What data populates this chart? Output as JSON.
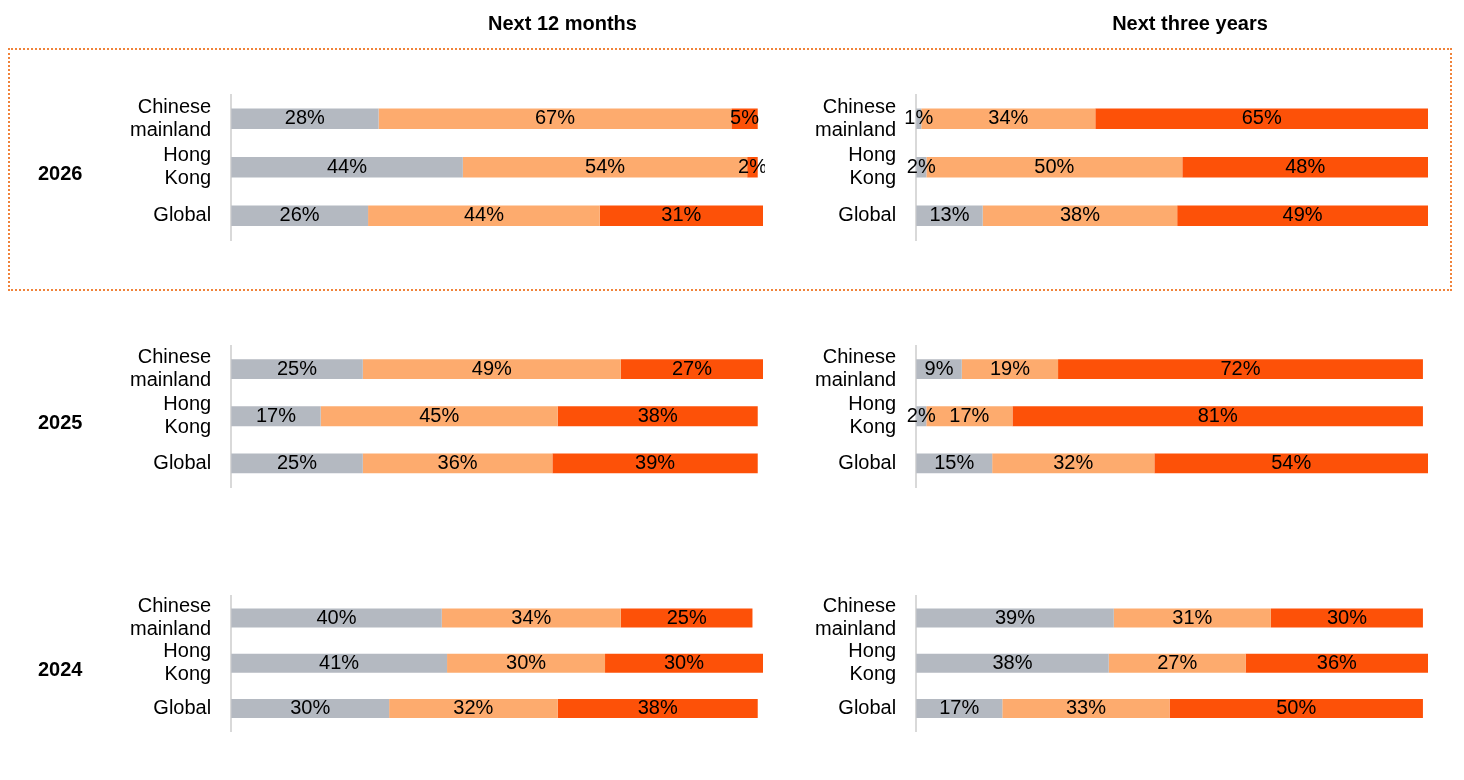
{
  "chart_data": [
    {
      "type": "bar",
      "orientation": "horizontal",
      "stacked": true,
      "title": "Next 12 months",
      "ylabel": "2026",
      "categories": [
        "Chinese mainland",
        "Hong Kong",
        "Global"
      ],
      "series": [
        {
          "color": "#b4b9c1",
          "values": [
            28,
            44,
            26
          ],
          "value_labels": [
            "28%",
            "44%",
            "26%"
          ]
        },
        {
          "color": "#fdab6e",
          "values": [
            67,
            54,
            44
          ],
          "value_labels": [
            "67%",
            "54%",
            "44%"
          ]
        },
        {
          "color": "#fd5108",
          "values": [
            5,
            2,
            31
          ],
          "value_labels": [
            "5%",
            "2%",
            "31%"
          ]
        }
      ],
      "legend": false,
      "grid": false,
      "tick_labels": "y"
    },
    {
      "type": "bar",
      "orientation": "horizontal",
      "stacked": true,
      "title": "Next three years",
      "categories": [
        "Chinese mainland",
        "Hong Kong",
        "Global"
      ],
      "series": [
        {
          "color": "#b4b9c1",
          "values": [
            1,
            2,
            13
          ],
          "value_labels": [
            "1%",
            "2%",
            "13%"
          ]
        },
        {
          "color": "#fdab6e",
          "values": [
            34,
            50,
            38
          ],
          "value_labels": [
            "34%",
            "50%",
            "38%"
          ]
        },
        {
          "color": "#fd5108",
          "values": [
            65,
            48,
            49
          ],
          "value_labels": [
            "65%",
            "48%",
            "49%"
          ]
        }
      ],
      "legend": false,
      "grid": false,
      "tick_labels": "y"
    },
    {
      "type": "bar",
      "orientation": "horizontal",
      "stacked": true,
      "ylabel": "2025",
      "categories": [
        "Chinese mainland",
        "Hong Kong",
        "Global"
      ],
      "series": [
        {
          "color": "#b4b9c1",
          "values": [
            25,
            17,
            25
          ],
          "value_labels": [
            "25%",
            "17%",
            "25%"
          ]
        },
        {
          "color": "#fdab6e",
          "values": [
            49,
            45,
            36
          ],
          "value_labels": [
            "49%",
            "45%",
            "36%"
          ]
        },
        {
          "color": "#fd5108",
          "values": [
            27,
            38,
            39
          ],
          "value_labels": [
            "27%",
            "38%",
            "39%"
          ]
        }
      ],
      "legend": false,
      "grid": false,
      "tick_labels": "y"
    },
    {
      "type": "bar",
      "orientation": "horizontal",
      "stacked": true,
      "categories": [
        "Chinese mainland",
        "Hong Kong",
        "Global"
      ],
      "series": [
        {
          "color": "#b4b9c1",
          "values": [
            9,
            2,
            15
          ],
          "value_labels": [
            "9%",
            "2%",
            "15%"
          ]
        },
        {
          "color": "#fdab6e",
          "values": [
            19,
            17,
            32
          ],
          "value_labels": [
            "19%",
            "17%",
            "32%"
          ]
        },
        {
          "color": "#fd5108",
          "values": [
            72,
            81,
            54
          ],
          "value_labels": [
            "72%",
            "81%",
            "54%"
          ]
        }
      ],
      "legend": false,
      "grid": false,
      "tick_labels": "y"
    },
    {
      "type": "bar",
      "orientation": "horizontal",
      "stacked": true,
      "ylabel": "2024",
      "categories": [
        "Chinese mainland",
        "Hong Kong",
        "Global"
      ],
      "series": [
        {
          "color": "#b4b9c1",
          "values": [
            40,
            41,
            30
          ],
          "value_labels": [
            "40%",
            "41%",
            "30%"
          ]
        },
        {
          "color": "#fdab6e",
          "values": [
            34,
            30,
            32
          ],
          "value_labels": [
            "34%",
            "30%",
            "32%"
          ]
        },
        {
          "color": "#fd5108",
          "values": [
            25,
            30,
            38
          ],
          "value_labels": [
            "25%",
            "30%",
            "38%"
          ]
        }
      ],
      "legend": false,
      "grid": false,
      "tick_labels": "y"
    },
    {
      "type": "bar",
      "orientation": "horizontal",
      "stacked": true,
      "categories": [
        "Chinese mainland",
        "Hong Kong",
        "Global"
      ],
      "series": [
        {
          "color": "#b4b9c1",
          "values": [
            39,
            38,
            17
          ],
          "value_labels": [
            "39%",
            "38%",
            "17%"
          ]
        },
        {
          "color": "#fdab6e",
          "values": [
            31,
            27,
            33
          ],
          "value_labels": [
            "31%",
            "27%",
            "33%"
          ]
        },
        {
          "color": "#fd5108",
          "values": [
            30,
            36,
            50
          ],
          "value_labels": [
            "30%",
            "36%",
            "50%"
          ]
        }
      ],
      "legend": false,
      "grid": false,
      "tick_labels": "y"
    }
  ]
}
